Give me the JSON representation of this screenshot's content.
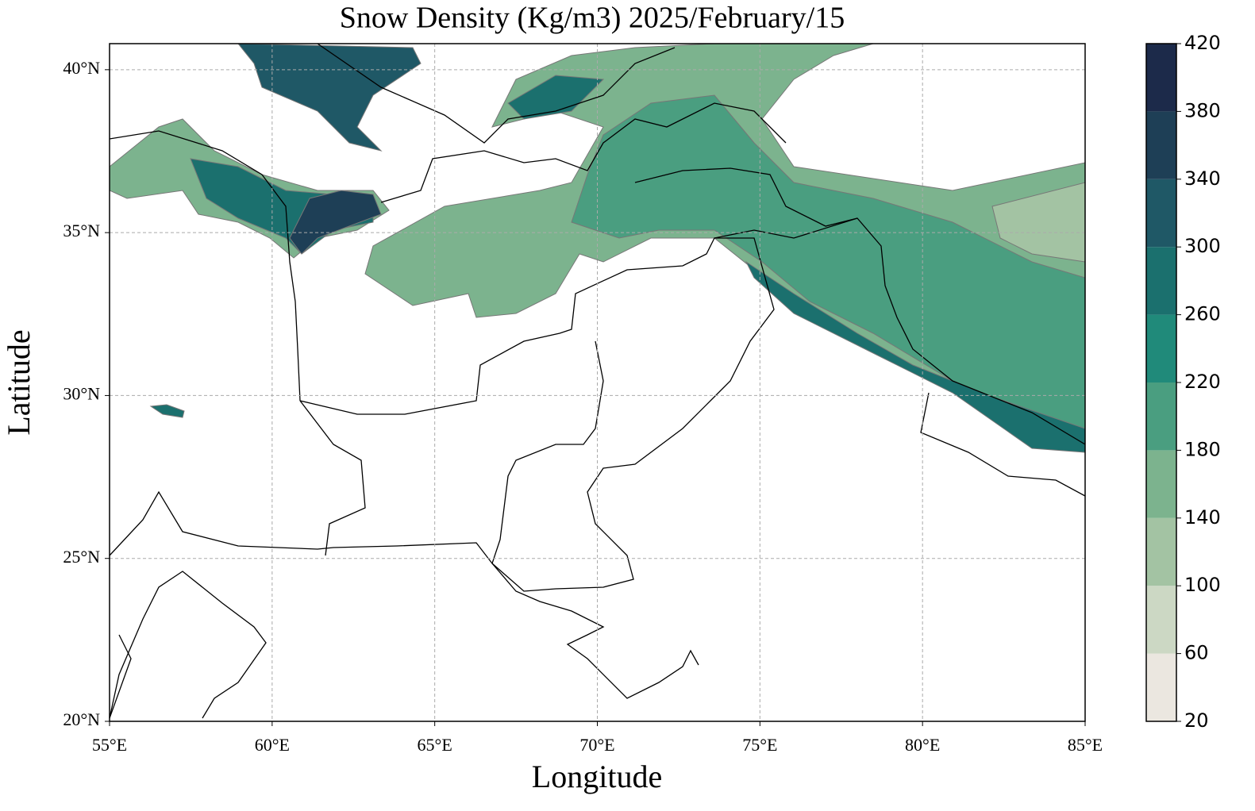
{
  "chart_data": {
    "type": "contour-map",
    "title": "Snow Density (Kg/m3) 2025/February/15",
    "xlabel": "Longitude",
    "ylabel": "Latitude",
    "xlim": [
      55,
      85
    ],
    "ylim": [
      20,
      40.8
    ],
    "xticks": [
      {
        "value": 55,
        "label": "55°E"
      },
      {
        "value": 60,
        "label": "60°E"
      },
      {
        "value": 65,
        "label": "65°E"
      },
      {
        "value": 70,
        "label": "70°E"
      },
      {
        "value": 75,
        "label": "75°E"
      },
      {
        "value": 80,
        "label": "80°E"
      },
      {
        "value": 85,
        "label": "85°E"
      }
    ],
    "yticks": [
      {
        "value": 20,
        "label": "20°N"
      },
      {
        "value": 25,
        "label": "25°N"
      },
      {
        "value": 30,
        "label": "30°N"
      },
      {
        "value": 35,
        "label": "35°N"
      },
      {
        "value": 40,
        "label": "40°N"
      }
    ],
    "grid": true,
    "colorbar": {
      "levels": [
        20,
        60,
        100,
        140,
        180,
        220,
        260,
        300,
        340,
        380,
        420
      ],
      "colors": [
        "#ebe7e0",
        "#ccd8c4",
        "#a3c3a3",
        "#7cb38e",
        "#4a9e80",
        "#208a7a",
        "#1b706e",
        "#1f5866",
        "#1e3f56",
        "#1c2a4a"
      ]
    }
  }
}
